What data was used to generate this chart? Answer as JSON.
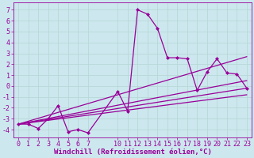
{
  "bg_color": "#cce8ee",
  "grid_color": "#aacccc",
  "line_color": "#990099",
  "xlim": [
    -0.5,
    23.5
  ],
  "ylim": [
    -4.7,
    7.7
  ],
  "xticks": [
    0,
    1,
    2,
    3,
    4,
    5,
    6,
    7,
    10,
    11,
    12,
    13,
    14,
    15,
    16,
    17,
    18,
    19,
    20,
    21,
    22,
    23
  ],
  "yticks": [
    -4,
    -3,
    -2,
    -1,
    0,
    1,
    2,
    3,
    4,
    5,
    6,
    7
  ],
  "main_x": [
    0,
    1,
    2,
    3,
    4,
    5,
    6,
    7,
    10,
    11,
    12,
    13,
    14,
    15,
    16,
    17,
    18,
    19,
    20,
    21,
    22,
    23
  ],
  "main_y": [
    -3.5,
    -3.5,
    -3.9,
    -3.0,
    -1.8,
    -4.2,
    -4.0,
    -4.3,
    -0.5,
    -2.3,
    7.0,
    6.6,
    5.3,
    2.6,
    2.6,
    2.5,
    -0.4,
    1.3,
    2.5,
    1.2,
    1.1,
    -0.2
  ],
  "trend_lines": [
    {
      "x": [
        0,
        23
      ],
      "y": [
        -3.5,
        2.7
      ]
    },
    {
      "x": [
        0,
        23
      ],
      "y": [
        -3.5,
        0.5
      ]
    },
    {
      "x": [
        0,
        23
      ],
      "y": [
        -3.5,
        -0.2
      ]
    },
    {
      "x": [
        0,
        23
      ],
      "y": [
        -3.5,
        -0.8
      ]
    }
  ],
  "xlabel": "Windchill (Refroidissement éolien,°C)",
  "marker": "D",
  "marker_size": 2.5,
  "line_width": 0.9,
  "xlabel_fontsize": 6.5,
  "tick_fontsize": 6.0
}
